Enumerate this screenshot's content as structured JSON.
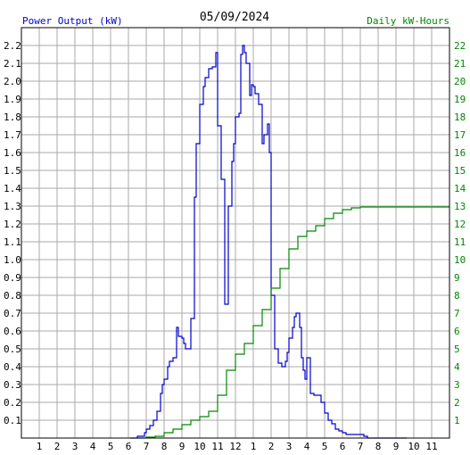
{
  "chart_data": {
    "type": "line",
    "title": "05/09/2024",
    "ylabel_left": "Power Output (kW)",
    "ylabel_right": "Daily kW-Hours",
    "colors": {
      "power": "#0000cc",
      "energy": "#008800",
      "grid": "#aaaaaa",
      "axis": "#000000"
    },
    "x_tick_labels": [
      "1",
      "2",
      "3",
      "4",
      "5",
      "6",
      "7",
      "8",
      "9",
      "10",
      "11",
      "12",
      "1",
      "2",
      "3",
      "4",
      "5",
      "6",
      "7",
      "8",
      "9",
      "10",
      "11"
    ],
    "y_left_ticks": [
      "0.1",
      "0.2",
      "0.3",
      "0.4",
      "0.5",
      "0.6",
      "0.7",
      "0.8",
      "0.9",
      "1.0",
      "1.1",
      "1.2",
      "1.3",
      "1.4",
      "1.5",
      "1.6",
      "1.7",
      "1.8",
      "1.9",
      "2.0",
      "2.1",
      "2.2"
    ],
    "y_right_ticks": [
      "1",
      "2",
      "3",
      "4",
      "5",
      "6",
      "7",
      "8",
      "9",
      "10",
      "11",
      "12",
      "13",
      "14",
      "15",
      "16",
      "17",
      "18",
      "19",
      "20",
      "21",
      "22"
    ],
    "xlim": [
      0,
      24
    ],
    "ylim_left": [
      0,
      2.3
    ],
    "ylim_right": [
      0,
      23
    ],
    "grid": true,
    "series": [
      {
        "name": "Power Output (kW)",
        "axis": "left",
        "x": [
          6.1,
          6.5,
          6.9,
          7.0,
          7.2,
          7.4,
          7.6,
          7.8,
          7.9,
          8.0,
          8.2,
          8.3,
          8.5,
          8.7,
          8.8,
          9.0,
          9.1,
          9.2,
          9.5,
          9.7,
          9.8,
          10.0,
          10.2,
          10.3,
          10.5,
          10.7,
          10.9,
          11.0,
          11.2,
          11.4,
          11.6,
          11.8,
          11.9,
          12.0,
          12.1,
          12.2,
          12.3,
          12.4,
          12.5,
          12.6,
          12.8,
          12.9,
          13.0,
          13.1,
          13.3,
          13.5,
          13.6,
          13.8,
          13.9,
          14.0,
          14.2,
          14.4,
          14.6,
          14.8,
          14.9,
          15.0,
          15.2,
          15.3,
          15.4,
          15.5,
          15.6,
          15.7,
          15.8,
          15.9,
          16.0,
          16.2,
          16.4,
          16.6,
          16.8,
          17.0,
          17.2,
          17.4,
          17.6,
          17.8,
          18.0,
          18.2,
          18.4,
          18.6,
          18.8,
          19.0,
          19.2,
          19.4,
          19.6,
          19.8,
          20.0,
          20.2,
          20.4,
          20.6,
          20.8,
          21.0,
          21.2,
          21.4,
          21.6
        ],
        "values": [
          0.0,
          0.01,
          0.03,
          0.05,
          0.07,
          0.1,
          0.15,
          0.25,
          0.3,
          0.33,
          0.4,
          0.43,
          0.45,
          0.62,
          0.57,
          0.56,
          0.53,
          0.5,
          0.67,
          1.35,
          1.65,
          1.87,
          1.97,
          2.02,
          2.07,
          2.08,
          2.16,
          1.75,
          1.45,
          0.75,
          1.3,
          1.55,
          1.65,
          1.8,
          1.8,
          1.82,
          2.15,
          2.2,
          2.16,
          2.1,
          1.92,
          1.98,
          1.97,
          1.93,
          1.87,
          1.65,
          1.7,
          1.76,
          1.6,
          0.8,
          0.5,
          0.42,
          0.4,
          0.43,
          0.48,
          0.56,
          0.62,
          0.68,
          0.7,
          0.7,
          0.62,
          0.45,
          0.38,
          0.33,
          0.45,
          0.25,
          0.24,
          0.24,
          0.2,
          0.14,
          0.1,
          0.08,
          0.05,
          0.04,
          0.03,
          0.02,
          0.02,
          0.02,
          0.02,
          0.02,
          0.01,
          0.0,
          0.0,
          0.0,
          0.0,
          0.0,
          0.0,
          0.0,
          0.0,
          0.0,
          0.0,
          0.0,
          0.0
        ]
      },
      {
        "name": "Daily kW-Hours",
        "axis": "right",
        "x": [
          6.5,
          7.0,
          7.5,
          8.0,
          8.5,
          9.0,
          9.5,
          10.0,
          10.5,
          11.0,
          11.5,
          12.0,
          12.5,
          13.0,
          13.5,
          14.0,
          14.5,
          15.0,
          15.5,
          16.0,
          16.5,
          17.0,
          17.5,
          18.0,
          18.5,
          19.0,
          19.5,
          20.0,
          20.5,
          21.0,
          21.5,
          22.0,
          22.5,
          23.0,
          23.5,
          24.0
        ],
        "values": [
          0.0,
          0.05,
          0.1,
          0.3,
          0.5,
          0.75,
          1.0,
          1.2,
          1.5,
          2.4,
          3.8,
          4.7,
          5.3,
          6.3,
          7.2,
          8.4,
          9.5,
          10.6,
          11.3,
          11.6,
          11.9,
          12.3,
          12.6,
          12.8,
          12.9,
          12.95,
          12.95,
          12.95,
          12.95,
          12.95,
          12.95,
          12.95,
          12.95,
          12.95,
          12.95,
          12.95
        ]
      }
    ]
  }
}
